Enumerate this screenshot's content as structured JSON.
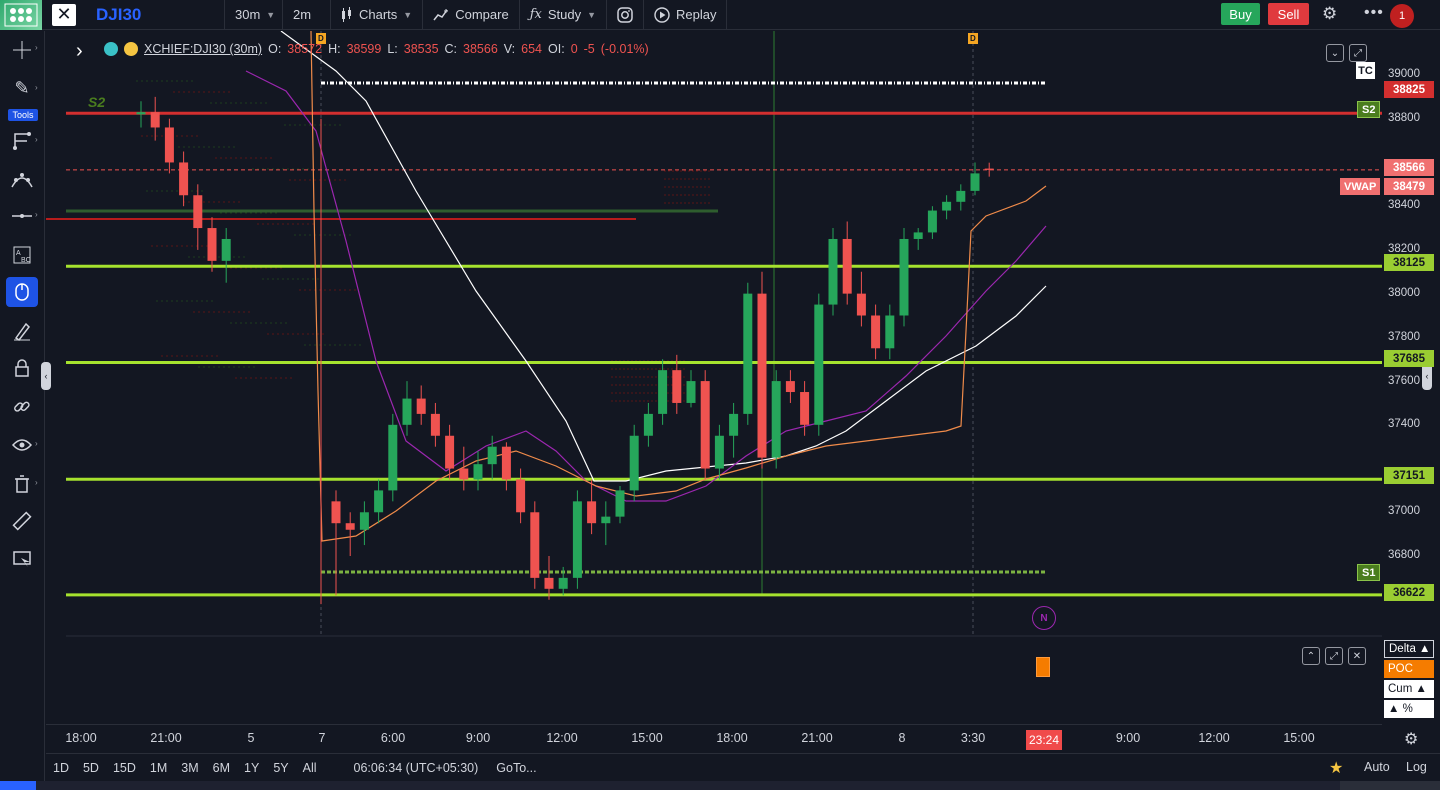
{
  "topbar": {
    "symbol": "DJI30",
    "interval": "30m",
    "interval2": "2m",
    "charts_label": "Charts",
    "compare_label": "Compare",
    "study_label": "Study",
    "replay_label": "Replay",
    "buy_label": "Buy",
    "sell_label": "Sell",
    "alert_count": "1"
  },
  "leftbar": {
    "tools_label": "Tools"
  },
  "legend": {
    "title": "XCHIEF:DJI30 (30m)",
    "o_label": "O:",
    "o": "38572",
    "h_label": "H:",
    "h": "38599",
    "l_label": "L:",
    "l": "38535",
    "c_label": "C:",
    "c": "38566",
    "v_label": "V:",
    "v": "654",
    "oi_label": "OI:",
    "oi": "0",
    "chg": "-5",
    "chg_pct": "(-0.01%)"
  },
  "price_scale": {
    "ticks": [
      "39000",
      "38800",
      "38400",
      "38200",
      "38000",
      "37800",
      "37600",
      "37400",
      "37000",
      "36800"
    ],
    "labels": {
      "r_red": "38825",
      "last": "38566",
      "vwap": "38479",
      "g1": "38125",
      "g2": "37685",
      "g3": "37151",
      "g4": "36622"
    },
    "vwap_tag": "VWAP",
    "s2_tag": "S2",
    "s1_tag": "S1",
    "s2_chart_label": "S2",
    "tc_tag": "TC",
    "d_tag": "D",
    "n_marker": "N"
  },
  "indicator_pane": {
    "delta": "Delta ▲",
    "poc": "POC",
    "cum": "Cum ▲",
    "pct": "▲ %"
  },
  "time_axis": {
    "labels": [
      "18:00",
      "21:00",
      "5",
      "7",
      "6:00",
      "9:00",
      "12:00",
      "15:00",
      "18:00",
      "21:00",
      "8",
      "3:30",
      "9:00",
      "12:00",
      "15:00"
    ],
    "current": "23:24"
  },
  "bottombar": {
    "ranges": [
      "1D",
      "5D",
      "15D",
      "1M",
      "3M",
      "6M",
      "1Y",
      "5Y",
      "All"
    ],
    "clock": "06:06:34 (UTC+05:30)",
    "goto": "GoTo...",
    "auto": "Auto",
    "log": "Log"
  },
  "chart_data": {
    "type": "candlestick",
    "ylim": [
      36550,
      39100
    ],
    "levels": [
      38825,
      38125,
      37685,
      37151,
      36622
    ],
    "last_price": 38566,
    "vwap": 38479,
    "candles": [
      [
        38820,
        38880,
        38760,
        38830
      ],
      [
        38830,
        38900,
        38700,
        38760
      ],
      [
        38760,
        38800,
        38550,
        38600
      ],
      [
        38600,
        38650,
        38400,
        38450
      ],
      [
        38450,
        38500,
        38200,
        38300
      ],
      [
        38300,
        38350,
        38100,
        38150
      ],
      [
        38150,
        38300,
        38050,
        38250
      ],
      [
        37050,
        37100,
        36620,
        36950
      ],
      [
        36950,
        37000,
        36800,
        36920
      ],
      [
        36920,
        37050,
        36850,
        37000
      ],
      [
        37000,
        37150,
        36950,
        37100
      ],
      [
        37100,
        37450,
        37050,
        37400
      ],
      [
        37400,
        37600,
        37350,
        37520
      ],
      [
        37520,
        37580,
        37400,
        37450
      ],
      [
        37450,
        37500,
        37300,
        37350
      ],
      [
        37350,
        37400,
        37150,
        37200
      ],
      [
        37200,
        37300,
        37100,
        37150
      ],
      [
        37150,
        37280,
        37100,
        37220
      ],
      [
        37220,
        37350,
        37150,
        37300
      ],
      [
        37300,
        37320,
        37100,
        37150
      ],
      [
        37150,
        37200,
        36950,
        37000
      ],
      [
        37000,
        37050,
        36650,
        36700
      ],
      [
        36700,
        36800,
        36600,
        36650
      ],
      [
        36650,
        36750,
        36620,
        36700
      ],
      [
        36700,
        37100,
        36650,
        37050
      ],
      [
        37050,
        37150,
        36900,
        36950
      ],
      [
        36950,
        37050,
        36850,
        36980
      ],
      [
        36980,
        37120,
        36950,
        37100
      ],
      [
        37100,
        37400,
        37050,
        37350
      ],
      [
        37350,
        37500,
        37300,
        37450
      ],
      [
        37450,
        37700,
        37400,
        37650
      ],
      [
        37650,
        37720,
        37450,
        37500
      ],
      [
        37500,
        37650,
        37480,
        37600
      ],
      [
        37600,
        37650,
        37150,
        37200
      ],
      [
        37200,
        37400,
        37150,
        37350
      ],
      [
        37350,
        37500,
        37250,
        37450
      ],
      [
        37450,
        38050,
        37400,
        38000
      ],
      [
        38000,
        38100,
        37200,
        37250
      ],
      [
        37250,
        37650,
        37200,
        37600
      ],
      [
        37600,
        37650,
        37500,
        37550
      ],
      [
        37550,
        37600,
        37350,
        37400
      ],
      [
        37400,
        38000,
        37350,
        37950
      ],
      [
        37950,
        38300,
        37900,
        38250
      ],
      [
        38250,
        38330,
        37950,
        38000
      ],
      [
        38000,
        38100,
        37850,
        37900
      ],
      [
        37900,
        37950,
        37700,
        37750
      ],
      [
        37750,
        37950,
        37700,
        37900
      ],
      [
        37900,
        38300,
        37850,
        38250
      ],
      [
        38250,
        38300,
        38200,
        38280
      ],
      [
        38280,
        38400,
        38250,
        38380
      ],
      [
        38380,
        38450,
        38340,
        38420
      ],
      [
        38420,
        38500,
        38380,
        38470
      ],
      [
        38470,
        38600,
        38450,
        38550
      ],
      [
        38572,
        38599,
        38535,
        38566
      ]
    ]
  }
}
